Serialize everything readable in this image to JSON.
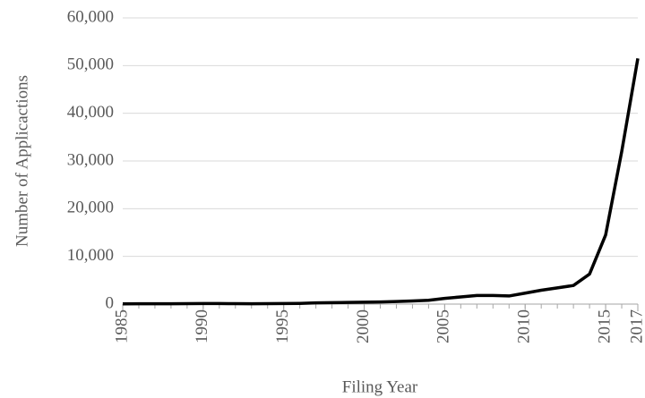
{
  "chart_data": {
    "type": "line",
    "x_label": "Filing Year",
    "y_label": "Number of Applicactions",
    "x": [
      1985,
      1986,
      1987,
      1988,
      1989,
      1990,
      1991,
      1992,
      1993,
      1994,
      1995,
      1996,
      1997,
      1998,
      1999,
      2000,
      2001,
      2002,
      2003,
      2004,
      2005,
      2006,
      2007,
      2008,
      2009,
      2010,
      2011,
      2012,
      2013,
      2014,
      2015,
      2016,
      2017
    ],
    "series": [
      {
        "color": "#000000",
        "values": [
          50,
          60,
          70,
          80,
          100,
          120,
          110,
          90,
          80,
          100,
          120,
          150,
          250,
          300,
          350,
          400,
          450,
          550,
          650,
          800,
          1200,
          1500,
          1800,
          1800,
          1700,
          2300,
          2900,
          3400,
          3900,
          6300,
          14500,
          32000,
          51500
        ]
      }
    ],
    "xlim": [
      1985,
      2017
    ],
    "xticks": [
      1985,
      1990,
      1995,
      2000,
      2005,
      2010,
      2015,
      2017
    ],
    "ylim": [
      0,
      60000
    ],
    "yticks": [
      0,
      {
        "value": 10000,
        "label": "10,000"
      },
      {
        "value": 20000,
        "label": "20,000"
      },
      {
        "value": 30000,
        "label": "30,000"
      },
      {
        "value": 40000,
        "label": "40,000"
      },
      {
        "value": 50000,
        "label": "50,000"
      },
      {
        "value": 60000,
        "label": "60,000"
      }
    ],
    "grid": true
  }
}
